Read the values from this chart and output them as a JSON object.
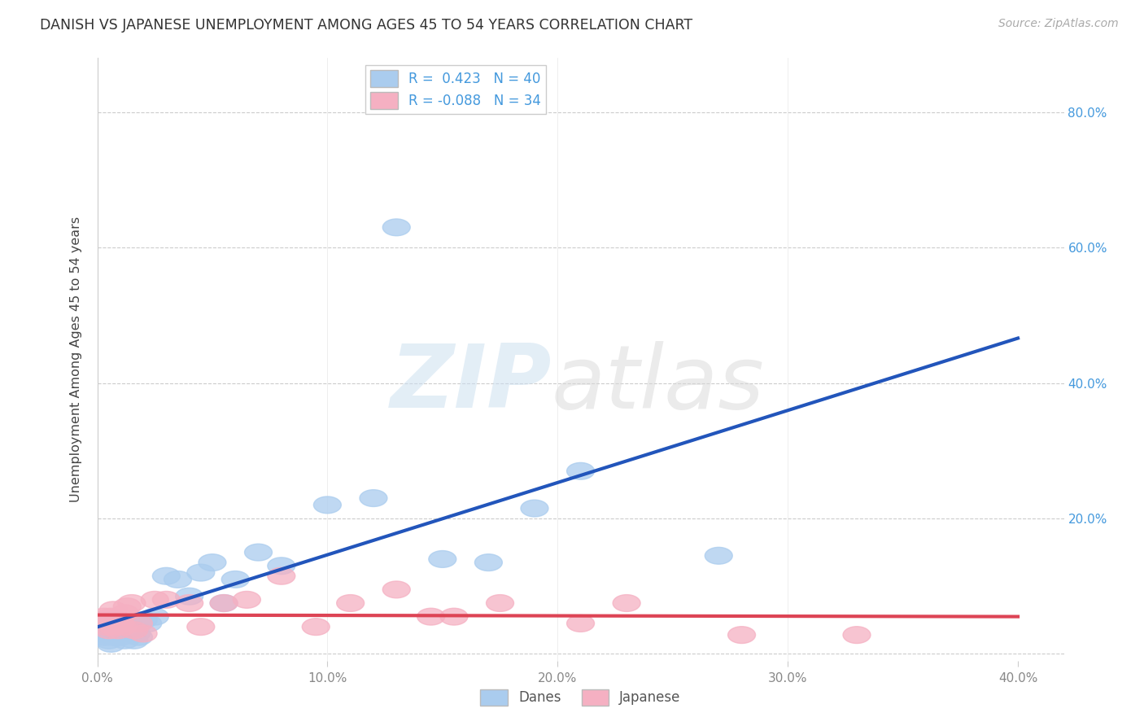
{
  "title": "DANISH VS JAPANESE UNEMPLOYMENT AMONG AGES 45 TO 54 YEARS CORRELATION CHART",
  "source": "Source: ZipAtlas.com",
  "ylabel": "Unemployment Among Ages 45 to 54 years",
  "xlim": [
    0.0,
    0.42
  ],
  "ylim": [
    -0.01,
    0.88
  ],
  "plot_xlim": [
    0.0,
    0.4
  ],
  "plot_ylim": [
    0.0,
    0.84
  ],
  "xticks": [
    0.0,
    0.1,
    0.2,
    0.3,
    0.4
  ],
  "yticks": [
    0.0,
    0.2,
    0.4,
    0.6,
    0.8
  ],
  "ytick_labels_right": [
    "",
    "20.0%",
    "40.0%",
    "60.0%",
    "80.0%"
  ],
  "xtick_labels": [
    "0.0%",
    "10.0%",
    "20.0%",
    "30.0%",
    "40.0%"
  ],
  "grid_color": "#cccccc",
  "danes_color": "#aaccee",
  "japanese_color": "#f5b0c2",
  "danes_line_color": "#2255bb",
  "japanese_line_color": "#dd4455",
  "danes_r": 0.423,
  "danes_n": 40,
  "japanese_r": -0.088,
  "japanese_n": 34,
  "danes_x": [
    0.002,
    0.003,
    0.004,
    0.005,
    0.005,
    0.006,
    0.006,
    0.007,
    0.007,
    0.008,
    0.009,
    0.01,
    0.011,
    0.012,
    0.013,
    0.014,
    0.015,
    0.016,
    0.017,
    0.018,
    0.02,
    0.022,
    0.025,
    0.03,
    0.035,
    0.04,
    0.045,
    0.05,
    0.055,
    0.06,
    0.07,
    0.08,
    0.1,
    0.12,
    0.13,
    0.15,
    0.17,
    0.19,
    0.21,
    0.27
  ],
  "danes_y": [
    0.03,
    0.025,
    0.045,
    0.035,
    0.02,
    0.03,
    0.015,
    0.025,
    0.04,
    0.05,
    0.035,
    0.025,
    0.03,
    0.02,
    0.035,
    0.045,
    0.04,
    0.02,
    0.03,
    0.025,
    0.05,
    0.045,
    0.055,
    0.115,
    0.11,
    0.085,
    0.12,
    0.135,
    0.075,
    0.11,
    0.15,
    0.13,
    0.22,
    0.23,
    0.63,
    0.14,
    0.135,
    0.215,
    0.27,
    0.145
  ],
  "japanese_x": [
    0.002,
    0.003,
    0.004,
    0.005,
    0.006,
    0.007,
    0.007,
    0.008,
    0.009,
    0.01,
    0.011,
    0.012,
    0.013,
    0.015,
    0.016,
    0.018,
    0.02,
    0.025,
    0.03,
    0.04,
    0.045,
    0.055,
    0.065,
    0.08,
    0.095,
    0.11,
    0.13,
    0.145,
    0.155,
    0.175,
    0.21,
    0.23,
    0.28,
    0.33
  ],
  "japanese_y": [
    0.05,
    0.055,
    0.04,
    0.035,
    0.055,
    0.04,
    0.065,
    0.05,
    0.035,
    0.045,
    0.04,
    0.06,
    0.07,
    0.075,
    0.035,
    0.045,
    0.03,
    0.08,
    0.08,
    0.075,
    0.04,
    0.075,
    0.08,
    0.115,
    0.04,
    0.075,
    0.095,
    0.055,
    0.055,
    0.075,
    0.045,
    0.075,
    0.028,
    0.028
  ]
}
